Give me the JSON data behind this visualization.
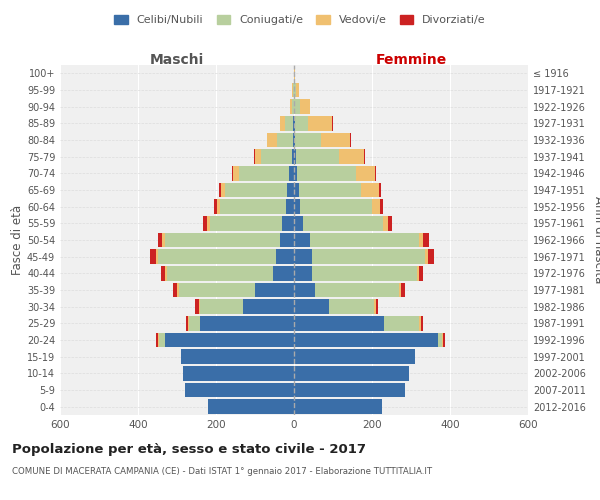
{
  "age_groups": [
    "0-4",
    "5-9",
    "10-14",
    "15-19",
    "20-24",
    "25-29",
    "30-34",
    "35-39",
    "40-44",
    "45-49",
    "50-54",
    "55-59",
    "60-64",
    "65-69",
    "70-74",
    "75-79",
    "80-84",
    "85-89",
    "90-94",
    "95-99",
    "100+"
  ],
  "birth_years": [
    "2012-2016",
    "2007-2011",
    "2002-2006",
    "1997-2001",
    "1992-1996",
    "1987-1991",
    "1982-1986",
    "1977-1981",
    "1972-1976",
    "1967-1971",
    "1962-1966",
    "1957-1961",
    "1952-1956",
    "1947-1951",
    "1942-1946",
    "1937-1941",
    "1932-1936",
    "1927-1931",
    "1922-1926",
    "1917-1921",
    "≤ 1916"
  ],
  "male": {
    "celibi": [
      220,
      280,
      285,
      290,
      330,
      240,
      130,
      100,
      55,
      45,
      35,
      30,
      20,
      18,
      12,
      5,
      3,
      2,
      1,
      1,
      0
    ],
    "coniugati": [
      0,
      0,
      0,
      0,
      15,
      30,
      110,
      195,
      270,
      305,
      295,
      185,
      170,
      160,
      130,
      80,
      40,
      20,
      5,
      2,
      0
    ],
    "vedovi": [
      0,
      0,
      0,
      0,
      3,
      3,
      3,
      5,
      5,
      5,
      8,
      8,
      8,
      10,
      15,
      15,
      25,
      15,
      5,
      2,
      0
    ],
    "divorziati": [
      0,
      0,
      0,
      0,
      5,
      5,
      10,
      10,
      12,
      15,
      10,
      10,
      8,
      5,
      3,
      2,
      2,
      0,
      0,
      0,
      0
    ]
  },
  "female": {
    "nubili": [
      225,
      285,
      295,
      310,
      370,
      230,
      90,
      55,
      45,
      45,
      40,
      22,
      15,
      12,
      8,
      5,
      3,
      2,
      1,
      1,
      0
    ],
    "coniugate": [
      0,
      0,
      0,
      0,
      10,
      90,
      115,
      215,
      270,
      290,
      280,
      205,
      185,
      160,
      150,
      110,
      65,
      35,
      15,
      5,
      1
    ],
    "vedove": [
      0,
      0,
      0,
      0,
      3,
      5,
      5,
      5,
      5,
      8,
      12,
      15,
      20,
      45,
      50,
      65,
      75,
      60,
      25,
      8,
      1
    ],
    "divorziate": [
      0,
      0,
      0,
      0,
      5,
      5,
      5,
      10,
      10,
      15,
      15,
      10,
      8,
      5,
      3,
      3,
      2,
      2,
      0,
      0,
      0
    ]
  },
  "colors": {
    "celibi_nubili": "#3a6ea8",
    "coniugati": "#b8cf9e",
    "vedovi": "#f0c070",
    "divorziati": "#cc2222"
  },
  "xlim": 600,
  "title": "Popolazione per età, sesso e stato civile - 2017",
  "subtitle": "COMUNE DI MACERATA CAMPANIA (CE) - Dati ISTAT 1° gennaio 2017 - Elaborazione TUTTITALIA.IT",
  "ylabel_left": "Fasce di età",
  "ylabel_right": "Anni di nascita",
  "xlabel_left": "Maschi",
  "xlabel_right": "Femmine",
  "bg_color": "#f0f0f0",
  "grid_color": "#dddddd"
}
